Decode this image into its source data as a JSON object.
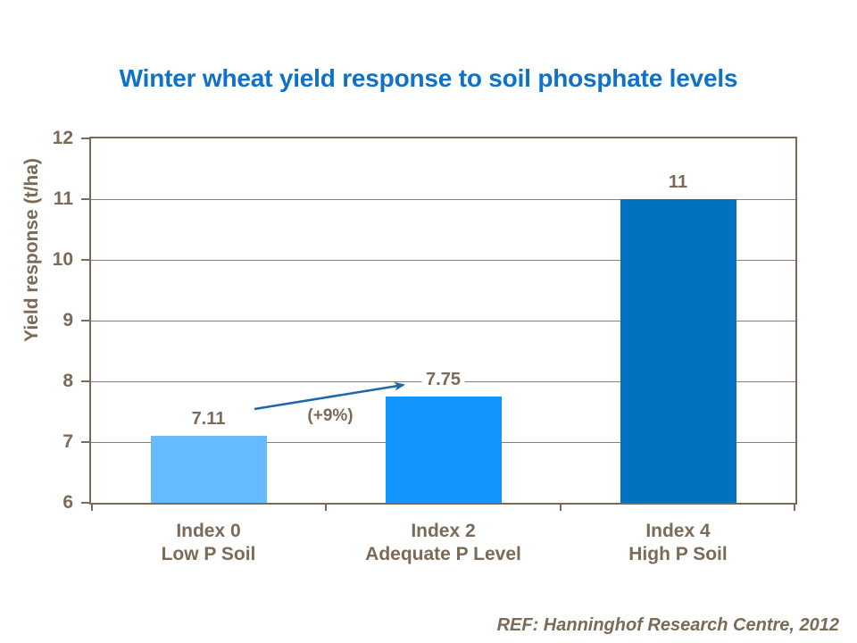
{
  "footer": {
    "text": "REF: Hanninghof Research Centre, 2012"
  },
  "chart_data": {
    "type": "bar",
    "title": "Winter wheat yield response to soil phosphate levels",
    "ylabel": "Yield response (t/ha)",
    "xlabel": "",
    "ylim": [
      6,
      12
    ],
    "yticks": [
      6,
      7,
      8,
      9,
      10,
      11,
      12
    ],
    "grid": true,
    "legend": false,
    "categories": [
      {
        "line1": "Index 0",
        "line2": "Low P Soil"
      },
      {
        "line1": "Index 2",
        "line2": "Adequate P Level"
      },
      {
        "line1": "Index 4",
        "line2": "High P Soil"
      }
    ],
    "values": [
      7.11,
      7.75,
      11
    ],
    "value_labels": [
      "7.11",
      "7.75",
      "11"
    ],
    "bar_colors": [
      "#66BBFF",
      "#1496FF",
      "#0072C0"
    ],
    "annotation": {
      "text": "(+9%)"
    },
    "colors": {
      "title": "#0D72C8",
      "axis_and_labels": "#7B6A55",
      "gridline": "#8C7D68",
      "arrow": "#1F66AE",
      "background": "#FFFFFF"
    }
  }
}
